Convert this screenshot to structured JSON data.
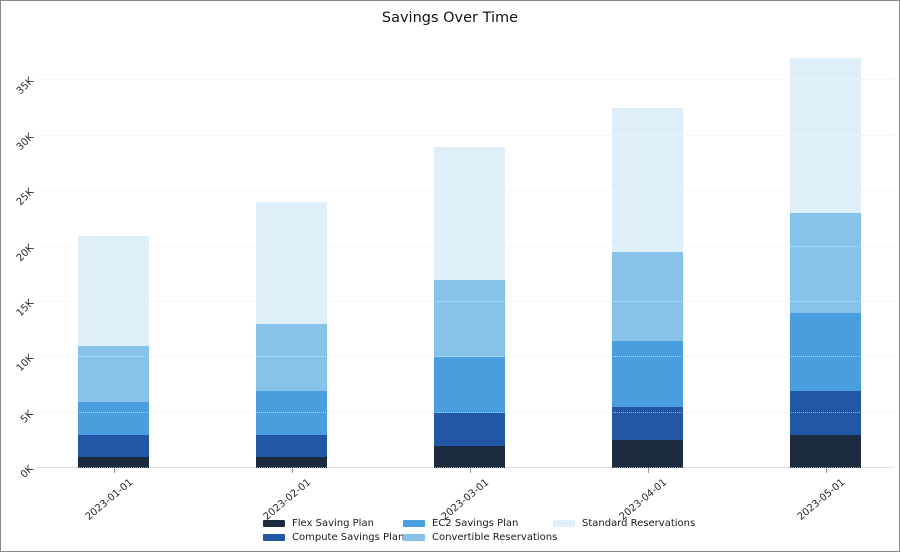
{
  "title": "Savings Over Time",
  "chart_data": {
    "type": "bar",
    "stacked": true,
    "title": "Savings Over Time",
    "categories": [
      "2023-01-01",
      "2023-02-01",
      "2023-03-01",
      "2023-04-01",
      "2023-05-01"
    ],
    "series": [
      {
        "name": "Flex Saving Plan",
        "color": "#1c2b40",
        "values": [
          1000,
          1000,
          2000,
          2500,
          3000
        ]
      },
      {
        "name": "Compute Savings Plan",
        "color": "#2257a6",
        "values": [
          2000,
          2000,
          3000,
          3000,
          4000
        ]
      },
      {
        "name": "EC2 Savings Plan",
        "color": "#4a9edd",
        "values": [
          3000,
          4000,
          5000,
          6000,
          7000
        ]
      },
      {
        "name": "Convertible Reservations",
        "color": "#87c3e8",
        "values": [
          5000,
          6000,
          7000,
          8000,
          9000
        ]
      },
      {
        "name": "Standard Reservations",
        "color": "#dfeffa",
        "values": [
          10000,
          11000,
          12000,
          13000,
          14000
        ]
      }
    ],
    "stack_totals": [
      21000,
      24000,
      29000,
      32500,
      37000
    ],
    "y_tick_labels": [
      "0K",
      "5K",
      "10K",
      "15K",
      "20K",
      "25K",
      "30K",
      "35K"
    ],
    "y_tick_values": [
      0,
      5000,
      10000,
      15000,
      20000,
      25000,
      30000,
      35000
    ],
    "ylim": [
      0,
      37700
    ],
    "grid": "horizontal-dotted",
    "legend_position": "bottom",
    "tick_label_rotation_deg": 45
  },
  "colors": {
    "background": "#ffffff",
    "gridline": "#d9d9d9",
    "title_text": "#141414",
    "tick_text": "#2a2a2a"
  }
}
